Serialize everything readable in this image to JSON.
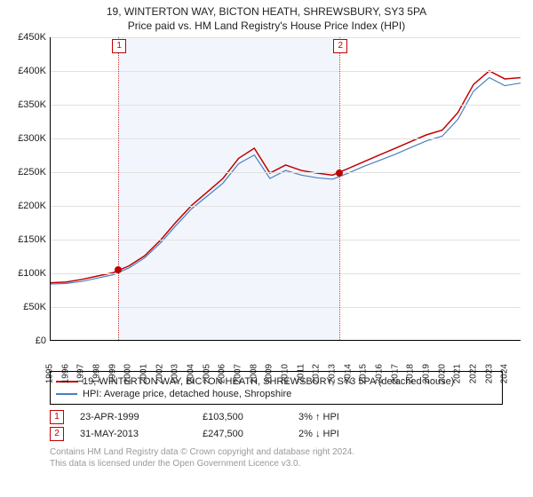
{
  "titles": {
    "main": "19, WINTERTON WAY, BICTON HEATH, SHREWSBURY, SY3 5PA",
    "sub": "Price paid vs. HM Land Registry's House Price Index (HPI)"
  },
  "chart": {
    "type": "line",
    "background_color": "#ffffff",
    "grid_color": "#e0e0e0",
    "yaxis": {
      "label_fontsize": 11,
      "min": 0,
      "max": 450,
      "ticks": [
        {
          "v": 0,
          "label": "£0"
        },
        {
          "v": 50,
          "label": "£50K"
        },
        {
          "v": 100,
          "label": "£100K"
        },
        {
          "v": 150,
          "label": "£150K"
        },
        {
          "v": 200,
          "label": "£200K"
        },
        {
          "v": 250,
          "label": "£250K"
        },
        {
          "v": 300,
          "label": "£300K"
        },
        {
          "v": 350,
          "label": "£350K"
        },
        {
          "v": 400,
          "label": "£400K"
        },
        {
          "v": 450,
          "label": "£450K"
        }
      ]
    },
    "xaxis": {
      "min": 1995,
      "max": 2025,
      "ticks": [
        1995,
        1996,
        1997,
        1998,
        1999,
        2000,
        2001,
        2002,
        2003,
        2004,
        2005,
        2006,
        2007,
        2008,
        2009,
        2010,
        2011,
        2012,
        2013,
        2014,
        2015,
        2016,
        2017,
        2018,
        2019,
        2020,
        2021,
        2022,
        2023,
        2024
      ],
      "label_fontsize": 10
    },
    "bands": [
      {
        "from": 1999.31,
        "to": 2013.41,
        "color": "#d9e6f7"
      }
    ],
    "vlines": [
      {
        "x": 1999.31,
        "color": "#c00000"
      },
      {
        "x": 2013.41,
        "color": "#c00000"
      }
    ],
    "markers": [
      {
        "n": "1",
        "x": 1999.31,
        "color": "#c00000"
      },
      {
        "n": "2",
        "x": 2013.41,
        "color": "#c00000"
      }
    ],
    "points": [
      {
        "x": 1999.31,
        "y": 103.5,
        "color": "#c00000"
      },
      {
        "x": 2013.41,
        "y": 247.5,
        "color": "#c00000"
      }
    ],
    "series": [
      {
        "name": "property",
        "label": "19, WINTERTON WAY, BICTON HEATH, SHREWSBURY, SY3 5PA (detached house)",
        "color": "#c00000",
        "width": 1.5,
        "x": [
          1995,
          1996,
          1997,
          1998,
          1999,
          2000,
          2001,
          2002,
          2003,
          2004,
          2005,
          2006,
          2007,
          2008,
          2009,
          2010,
          2011,
          2012,
          2013,
          2014,
          2015,
          2016,
          2017,
          2018,
          2019,
          2020,
          2021,
          2022,
          2023,
          2024,
          2025
        ],
        "y": [
          85,
          86,
          90,
          95,
          100,
          110,
          125,
          148,
          175,
          200,
          220,
          240,
          270,
          285,
          248,
          260,
          252,
          248,
          245,
          255,
          265,
          275,
          285,
          295,
          305,
          312,
          338,
          380,
          400,
          388,
          390
        ]
      },
      {
        "name": "hpi",
        "label": "HPI: Average price, detached house, Shropshire",
        "color": "#4a7fbf",
        "width": 1.2,
        "x": [
          1995,
          1996,
          1997,
          1998,
          1999,
          2000,
          2001,
          2002,
          2003,
          2004,
          2005,
          2006,
          2007,
          2008,
          2009,
          2010,
          2011,
          2012,
          2013,
          2014,
          2015,
          2016,
          2017,
          2018,
          2019,
          2020,
          2021,
          2022,
          2023,
          2024,
          2025
        ],
        "y": [
          83,
          84,
          87,
          92,
          97,
          107,
          122,
          144,
          170,
          195,
          214,
          233,
          262,
          275,
          240,
          252,
          245,
          241,
          239,
          248,
          258,
          267,
          276,
          286,
          296,
          303,
          328,
          370,
          390,
          378,
          382
        ]
      }
    ]
  },
  "legend": {
    "rows": [
      {
        "color": "#c00000",
        "text": "19, WINTERTON WAY, BICTON HEATH, SHREWSBURY, SY3 5PA (detached house)"
      },
      {
        "color": "#4a7fbf",
        "text": "HPI: Average price, detached house, Shropshire"
      }
    ]
  },
  "events": [
    {
      "n": "1",
      "color": "#c00000",
      "date": "23-APR-1999",
      "price": "£103,500",
      "delta": "3% ↑ HPI"
    },
    {
      "n": "2",
      "color": "#c00000",
      "date": "31-MAY-2013",
      "price": "£247,500",
      "delta": "2% ↓ HPI"
    }
  ],
  "footer": {
    "line1": "Contains HM Land Registry data © Crown copyright and database right 2024.",
    "line2": "This data is licensed under the Open Government Licence v3.0."
  }
}
